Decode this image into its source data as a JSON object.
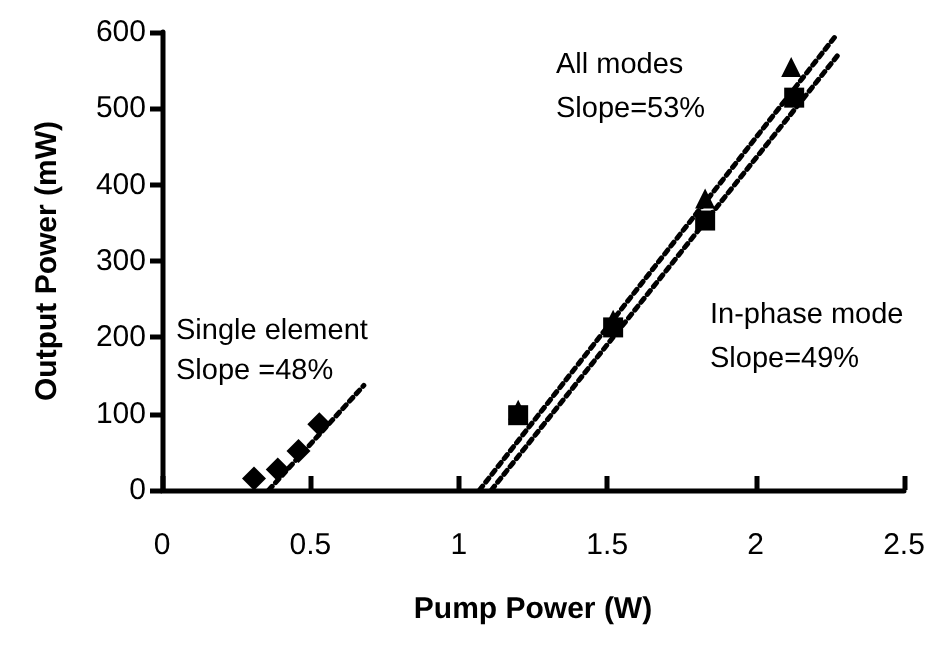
{
  "chart_data": {
    "type": "scatter",
    "xlabel": "Pump Power (W)",
    "ylabel": "Output Power (mW)",
    "xlim": [
      0,
      2.5
    ],
    "xticks": [
      0,
      0.5,
      1,
      1.5,
      2,
      2.5
    ],
    "ylim": [
      0,
      600
    ],
    "yticks": [
      0,
      100,
      200,
      300,
      400,
      500,
      600
    ],
    "grid": false,
    "series": [
      {
        "marker": "diamond",
        "color": "#000000",
        "x": [
          0.31,
          0.39,
          0.46,
          0.53
        ],
        "values": [
          15,
          27,
          51,
          86
        ]
      },
      {
        "marker": "square",
        "color": "#000000",
        "x": [
          1.2,
          1.52,
          1.83,
          2.13
        ],
        "values": [
          98,
          213,
          353,
          514
        ]
      },
      {
        "marker": "triangle",
        "color": "#000000",
        "x": [
          1.2,
          1.52,
          1.83,
          2.12
        ],
        "values": [
          105,
          223,
          382,
          554
        ]
      },
      {
        "type": "line",
        "marker": "none",
        "line_style": "dotted",
        "color": "#000000",
        "x": [
          0.36,
          0.68
        ],
        "values": [
          0,
          137
        ]
      },
      {
        "type": "line",
        "marker": "none",
        "line_style": "dotted",
        "color": "#000000",
        "x": [
          1.07,
          2.27
        ],
        "values": [
          0,
          595
        ]
      },
      {
        "type": "line",
        "marker": "none",
        "line_style": "dotted",
        "color": "#000000",
        "x": [
          1.11,
          2.28
        ],
        "values": [
          0,
          571
        ]
      }
    ],
    "annotations": [
      "Single element",
      "Slope =48%",
      "All modes",
      "Slope=53%",
      "In-phase mode",
      "Slope=49%"
    ]
  }
}
